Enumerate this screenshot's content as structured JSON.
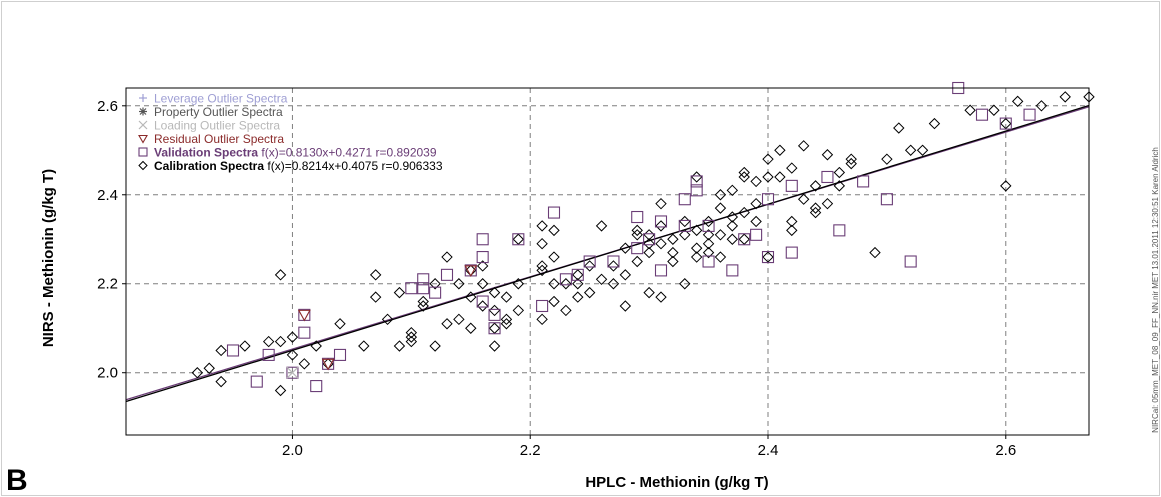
{
  "panel_letter": "B",
  "side_note": "NIRCal: 05mm_MET_08_09_FF_NN.nir MET 13.01.2011 12:30:51 Karen Aldrich",
  "colors": {
    "calibration": "#000000",
    "validation": "#6a3d76",
    "residual": "#8b2b2b",
    "loading": "#b8b8b8",
    "property": "#555555",
    "leverage": "#9f9fd4",
    "grid": "#7f7f7f"
  },
  "chart_data": {
    "type": "scatter",
    "xlabel": "HPLC - Methionin (g/kg T)",
    "ylabel": "NIRS - Methionin (g/kg T)",
    "xlim": [
      1.86,
      2.67
    ],
    "ylim": [
      1.86,
      2.64
    ],
    "xticks": [
      "2.0",
      "2.2",
      "2.4",
      "2.6"
    ],
    "yticks": [
      "2.0",
      "2.2",
      "2.4",
      "2.6"
    ],
    "grid": true,
    "legend_position": "top-left",
    "legend": [
      {
        "marker": "plus",
        "label": "Leverage Outlier Spectra",
        "fit": "",
        "color": "#9f9fd4",
        "bold": false
      },
      {
        "marker": "star",
        "label": "Property Outlier Spectra",
        "fit": "",
        "color": "#555555",
        "bold": false
      },
      {
        "marker": "cross",
        "label": "Loading Outlier Spectra",
        "fit": "",
        "color": "#b8b8b8",
        "bold": false
      },
      {
        "marker": "triangle",
        "label": "Residual Outlier Spectra",
        "fit": "",
        "color": "#8b2b2b",
        "bold": false
      },
      {
        "marker": "square",
        "label": "Validation Spectra",
        "fit": "f(x)=0.8130x+0.4271  r=0.892039",
        "color": "#6a3d76",
        "bold": true
      },
      {
        "marker": "diamond",
        "label": "Calibration Spectra",
        "fit": "f(x)=0.8214x+0.4075  r=0.906333",
        "color": "#000000",
        "bold": true
      }
    ],
    "fit_lines": [
      {
        "name": "Validation Spectra",
        "slope": 0.813,
        "intercept": 0.4271,
        "color": "#6a3d76"
      },
      {
        "name": "Calibration Spectra",
        "slope": 0.8214,
        "intercept": 0.4075,
        "color": "#000000"
      }
    ],
    "series": [
      {
        "name": "Calibration Spectra",
        "marker": "diamond",
        "points": [
          [
            1.92,
            2.0
          ],
          [
            1.93,
            2.01
          ],
          [
            1.94,
            1.98
          ],
          [
            1.94,
            2.05
          ],
          [
            1.96,
            2.06
          ],
          [
            1.98,
            2.07
          ],
          [
            1.99,
            2.07
          ],
          [
            1.99,
            1.96
          ],
          [
            1.99,
            2.22
          ],
          [
            2.0,
            2.04
          ],
          [
            2.0,
            2.08
          ],
          [
            2.01,
            2.02
          ],
          [
            2.02,
            2.06
          ],
          [
            2.03,
            2.02
          ],
          [
            2.04,
            2.11
          ],
          [
            2.06,
            2.06
          ],
          [
            2.07,
            2.17
          ],
          [
            2.07,
            2.22
          ],
          [
            2.08,
            2.12
          ],
          [
            2.09,
            2.18
          ],
          [
            2.09,
            2.06
          ],
          [
            2.1,
            2.08
          ],
          [
            2.1,
            2.09
          ],
          [
            2.1,
            2.07
          ],
          [
            2.11,
            2.15
          ],
          [
            2.11,
            2.16
          ],
          [
            2.12,
            2.2
          ],
          [
            2.12,
            2.06
          ],
          [
            2.13,
            2.11
          ],
          [
            2.13,
            2.26
          ],
          [
            2.14,
            2.12
          ],
          [
            2.14,
            2.2
          ],
          [
            2.15,
            2.23
          ],
          [
            2.15,
            2.1
          ],
          [
            2.15,
            2.17
          ],
          [
            2.16,
            2.15
          ],
          [
            2.16,
            2.2
          ],
          [
            2.16,
            2.24
          ],
          [
            2.17,
            2.14
          ],
          [
            2.17,
            2.18
          ],
          [
            2.17,
            2.1
          ],
          [
            2.17,
            2.06
          ],
          [
            2.18,
            2.11
          ],
          [
            2.18,
            2.12
          ],
          [
            2.18,
            2.17
          ],
          [
            2.19,
            2.14
          ],
          [
            2.19,
            2.2
          ],
          [
            2.19,
            2.3
          ],
          [
            2.21,
            2.12
          ],
          [
            2.21,
            2.23
          ],
          [
            2.21,
            2.24
          ],
          [
            2.21,
            2.29
          ],
          [
            2.21,
            2.33
          ],
          [
            2.22,
            2.16
          ],
          [
            2.22,
            2.2
          ],
          [
            2.22,
            2.26
          ],
          [
            2.22,
            2.32
          ],
          [
            2.23,
            2.2
          ],
          [
            2.23,
            2.14
          ],
          [
            2.24,
            2.22
          ],
          [
            2.24,
            2.2
          ],
          [
            2.24,
            2.17
          ],
          [
            2.25,
            2.24
          ],
          [
            2.25,
            2.18
          ],
          [
            2.26,
            2.33
          ],
          [
            2.26,
            2.21
          ],
          [
            2.27,
            2.24
          ],
          [
            2.27,
            2.2
          ],
          [
            2.28,
            2.15
          ],
          [
            2.28,
            2.22
          ],
          [
            2.28,
            2.28
          ],
          [
            2.29,
            2.25
          ],
          [
            2.29,
            2.31
          ],
          [
            2.29,
            2.32
          ],
          [
            2.3,
            2.27
          ],
          [
            2.3,
            2.29
          ],
          [
            2.3,
            2.31
          ],
          [
            2.3,
            2.18
          ],
          [
            2.31,
            2.17
          ],
          [
            2.31,
            2.29
          ],
          [
            2.31,
            2.33
          ],
          [
            2.31,
            2.38
          ],
          [
            2.32,
            2.25
          ],
          [
            2.32,
            2.27
          ],
          [
            2.32,
            2.3
          ],
          [
            2.33,
            2.31
          ],
          [
            2.33,
            2.2
          ],
          [
            2.33,
            2.34
          ],
          [
            2.34,
            2.28
          ],
          [
            2.34,
            2.32
          ],
          [
            2.34,
            2.26
          ],
          [
            2.34,
            2.44
          ],
          [
            2.35,
            2.31
          ],
          [
            2.35,
            2.29
          ],
          [
            2.35,
            2.34
          ],
          [
            2.35,
            2.27
          ],
          [
            2.36,
            2.31
          ],
          [
            2.36,
            2.37
          ],
          [
            2.36,
            2.26
          ],
          [
            2.36,
            2.4
          ],
          [
            2.37,
            2.33
          ],
          [
            2.37,
            2.3
          ],
          [
            2.37,
            2.35
          ],
          [
            2.37,
            2.41
          ],
          [
            2.38,
            2.45
          ],
          [
            2.38,
            2.44
          ],
          [
            2.38,
            2.3
          ],
          [
            2.38,
            2.36
          ],
          [
            2.39,
            2.34
          ],
          [
            2.39,
            2.38
          ],
          [
            2.39,
            2.43
          ],
          [
            2.4,
            2.26
          ],
          [
            2.4,
            2.44
          ],
          [
            2.4,
            2.48
          ],
          [
            2.41,
            2.5
          ],
          [
            2.41,
            2.44
          ],
          [
            2.42,
            2.46
          ],
          [
            2.42,
            2.34
          ],
          [
            2.42,
            2.32
          ],
          [
            2.43,
            2.51
          ],
          [
            2.43,
            2.39
          ],
          [
            2.44,
            2.36
          ],
          [
            2.44,
            2.37
          ],
          [
            2.44,
            2.42
          ],
          [
            2.45,
            2.49
          ],
          [
            2.45,
            2.38
          ],
          [
            2.46,
            2.42
          ],
          [
            2.46,
            2.45
          ],
          [
            2.47,
            2.48
          ],
          [
            2.47,
            2.47
          ],
          [
            2.49,
            2.27
          ],
          [
            2.5,
            2.48
          ],
          [
            2.51,
            2.55
          ],
          [
            2.52,
            2.5
          ],
          [
            2.53,
            2.5
          ],
          [
            2.54,
            2.56
          ],
          [
            2.57,
            2.59
          ],
          [
            2.59,
            2.59
          ],
          [
            2.6,
            2.56
          ],
          [
            2.6,
            2.42
          ],
          [
            2.61,
            2.61
          ],
          [
            2.63,
            2.6
          ],
          [
            2.65,
            2.62
          ],
          [
            2.67,
            2.62
          ]
        ]
      },
      {
        "name": "Validation Spectra",
        "marker": "square",
        "points": [
          [
            1.95,
            2.05
          ],
          [
            1.97,
            1.98
          ],
          [
            1.98,
            2.04
          ],
          [
            2.0,
            2.0
          ],
          [
            2.01,
            2.09
          ],
          [
            2.01,
            2.13
          ],
          [
            2.02,
            1.97
          ],
          [
            2.03,
            2.02
          ],
          [
            2.04,
            2.04
          ],
          [
            2.1,
            2.19
          ],
          [
            2.11,
            2.19
          ],
          [
            2.11,
            2.21
          ],
          [
            2.12,
            2.18
          ],
          [
            2.13,
            2.22
          ],
          [
            2.15,
            2.23
          ],
          [
            2.16,
            2.3
          ],
          [
            2.16,
            2.26
          ],
          [
            2.16,
            2.16
          ],
          [
            2.17,
            2.1
          ],
          [
            2.17,
            2.13
          ],
          [
            2.19,
            2.3
          ],
          [
            2.21,
            2.15
          ],
          [
            2.22,
            2.36
          ],
          [
            2.23,
            2.21
          ],
          [
            2.24,
            2.22
          ],
          [
            2.25,
            2.25
          ],
          [
            2.27,
            2.25
          ],
          [
            2.29,
            2.35
          ],
          [
            2.29,
            2.28
          ],
          [
            2.3,
            2.3
          ],
          [
            2.31,
            2.34
          ],
          [
            2.31,
            2.23
          ],
          [
            2.33,
            2.39
          ],
          [
            2.33,
            2.33
          ],
          [
            2.34,
            2.43
          ],
          [
            2.34,
            2.41
          ],
          [
            2.35,
            2.33
          ],
          [
            2.35,
            2.25
          ],
          [
            2.37,
            2.23
          ],
          [
            2.38,
            2.3
          ],
          [
            2.39,
            2.31
          ],
          [
            2.4,
            2.26
          ],
          [
            2.4,
            2.39
          ],
          [
            2.42,
            2.27
          ],
          [
            2.42,
            2.42
          ],
          [
            2.45,
            2.44
          ],
          [
            2.46,
            2.32
          ],
          [
            2.48,
            2.43
          ],
          [
            2.5,
            2.39
          ],
          [
            2.52,
            2.25
          ],
          [
            2.56,
            2.64
          ],
          [
            2.58,
            2.58
          ],
          [
            2.6,
            2.56
          ],
          [
            2.62,
            2.58
          ]
        ]
      },
      {
        "name": "Residual Outlier Spectra",
        "marker": "triangle",
        "points": [
          [
            2.01,
            2.13
          ],
          [
            2.03,
            2.02
          ],
          [
            2.15,
            2.23
          ]
        ]
      },
      {
        "name": "Loading Outlier Spectra",
        "marker": "cross",
        "points": [
          [
            2.0,
            2.0
          ]
        ]
      }
    ]
  }
}
